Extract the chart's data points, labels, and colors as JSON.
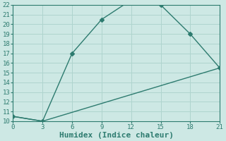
{
  "line1_x": [
    0,
    3,
    6,
    9,
    12,
    15,
    18,
    21
  ],
  "line1_y": [
    10.5,
    10,
    17,
    20.5,
    22.5,
    22,
    19,
    15.5
  ],
  "line2_x": [
    0,
    3,
    21
  ],
  "line2_y": [
    10.5,
    10,
    15.5
  ],
  "color": "#2d7b6f",
  "bg_color": "#cde8e4",
  "grid_color": "#afd4ce",
  "xlabel": "Humidex (Indice chaleur)",
  "xlim": [
    0,
    21
  ],
  "ylim": [
    10,
    22
  ],
  "xticks": [
    0,
    3,
    6,
    9,
    12,
    15,
    18,
    21
  ],
  "yticks": [
    10,
    11,
    12,
    13,
    14,
    15,
    16,
    17,
    18,
    19,
    20,
    21,
    22
  ],
  "marker": "D",
  "markersize": 3,
  "linewidth": 1.0,
  "xlabel_fontsize": 8,
  "tick_fontsize": 6.5,
  "font_family": "monospace"
}
